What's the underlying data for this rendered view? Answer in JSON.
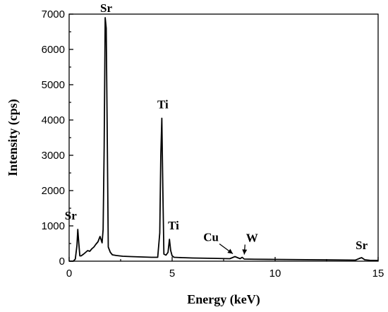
{
  "chart_data": {
    "type": "line",
    "title": "",
    "xlabel": "Energy (keV)",
    "ylabel": "Intensity (cps)",
    "xlim": [
      0,
      15
    ],
    "ylim": [
      0,
      7000
    ],
    "xticks": [
      0,
      5,
      10,
      15
    ],
    "yticks": [
      0,
      1000,
      2000,
      3000,
      4000,
      5000,
      6000,
      7000
    ],
    "grid": false,
    "legend": "none",
    "series": [
      {
        "x": [
          0.0,
          0.2,
          0.3,
          0.38,
          0.42,
          0.47,
          0.52,
          0.58,
          0.7,
          0.9,
          1.0,
          1.1,
          1.2,
          1.3,
          1.4,
          1.5,
          1.6,
          1.65,
          1.7,
          1.75,
          1.8,
          1.84,
          1.9,
          2.0,
          2.1,
          2.3,
          2.6,
          3.0,
          3.5,
          4.0,
          4.3,
          4.4,
          4.45,
          4.5,
          4.55,
          4.6,
          4.7,
          4.8,
          4.87,
          4.93,
          5.0,
          5.1,
          5.5,
          6.0,
          7.0,
          7.8,
          8.05,
          8.3,
          8.4,
          8.5,
          9.0,
          10.0,
          11.0,
          12.0,
          13.0,
          13.9,
          14.1,
          14.2,
          14.35,
          14.6,
          15.0
        ],
        "y": [
          0,
          0,
          60,
          450,
          900,
          500,
          150,
          150,
          200,
          300,
          280,
          350,
          400,
          480,
          550,
          700,
          520,
          900,
          3200,
          6900,
          6600,
          4200,
          400,
          250,
          180,
          160,
          140,
          130,
          120,
          110,
          110,
          800,
          3000,
          4050,
          2000,
          200,
          170,
          250,
          620,
          300,
          150,
          110,
          100,
          90,
          80,
          70,
          130,
          70,
          110,
          60,
          55,
          50,
          45,
          40,
          35,
          30,
          80,
          100,
          40,
          25,
          20
        ]
      }
    ],
    "annotations": [
      {
        "text": "Sr",
        "x": 0.42,
        "y": 900,
        "arrow": false
      },
      {
        "text": "Sr",
        "x": 1.8,
        "y": 6900,
        "arrow": false
      },
      {
        "text": "Ti",
        "x": 4.55,
        "y": 4050,
        "arrow": false
      },
      {
        "text": "Ti",
        "x": 4.93,
        "y": 620,
        "arrow": false
      },
      {
        "text": "Cu",
        "x": 8.05,
        "y": 130,
        "arrow": true
      },
      {
        "text": "W",
        "x": 8.4,
        "y": 110,
        "arrow": true
      },
      {
        "text": "Sr",
        "x": 14.2,
        "y": 100,
        "arrow": false
      }
    ]
  },
  "colors": {
    "line": "#000000",
    "axis": "#000000",
    "background": "#ffffff"
  }
}
